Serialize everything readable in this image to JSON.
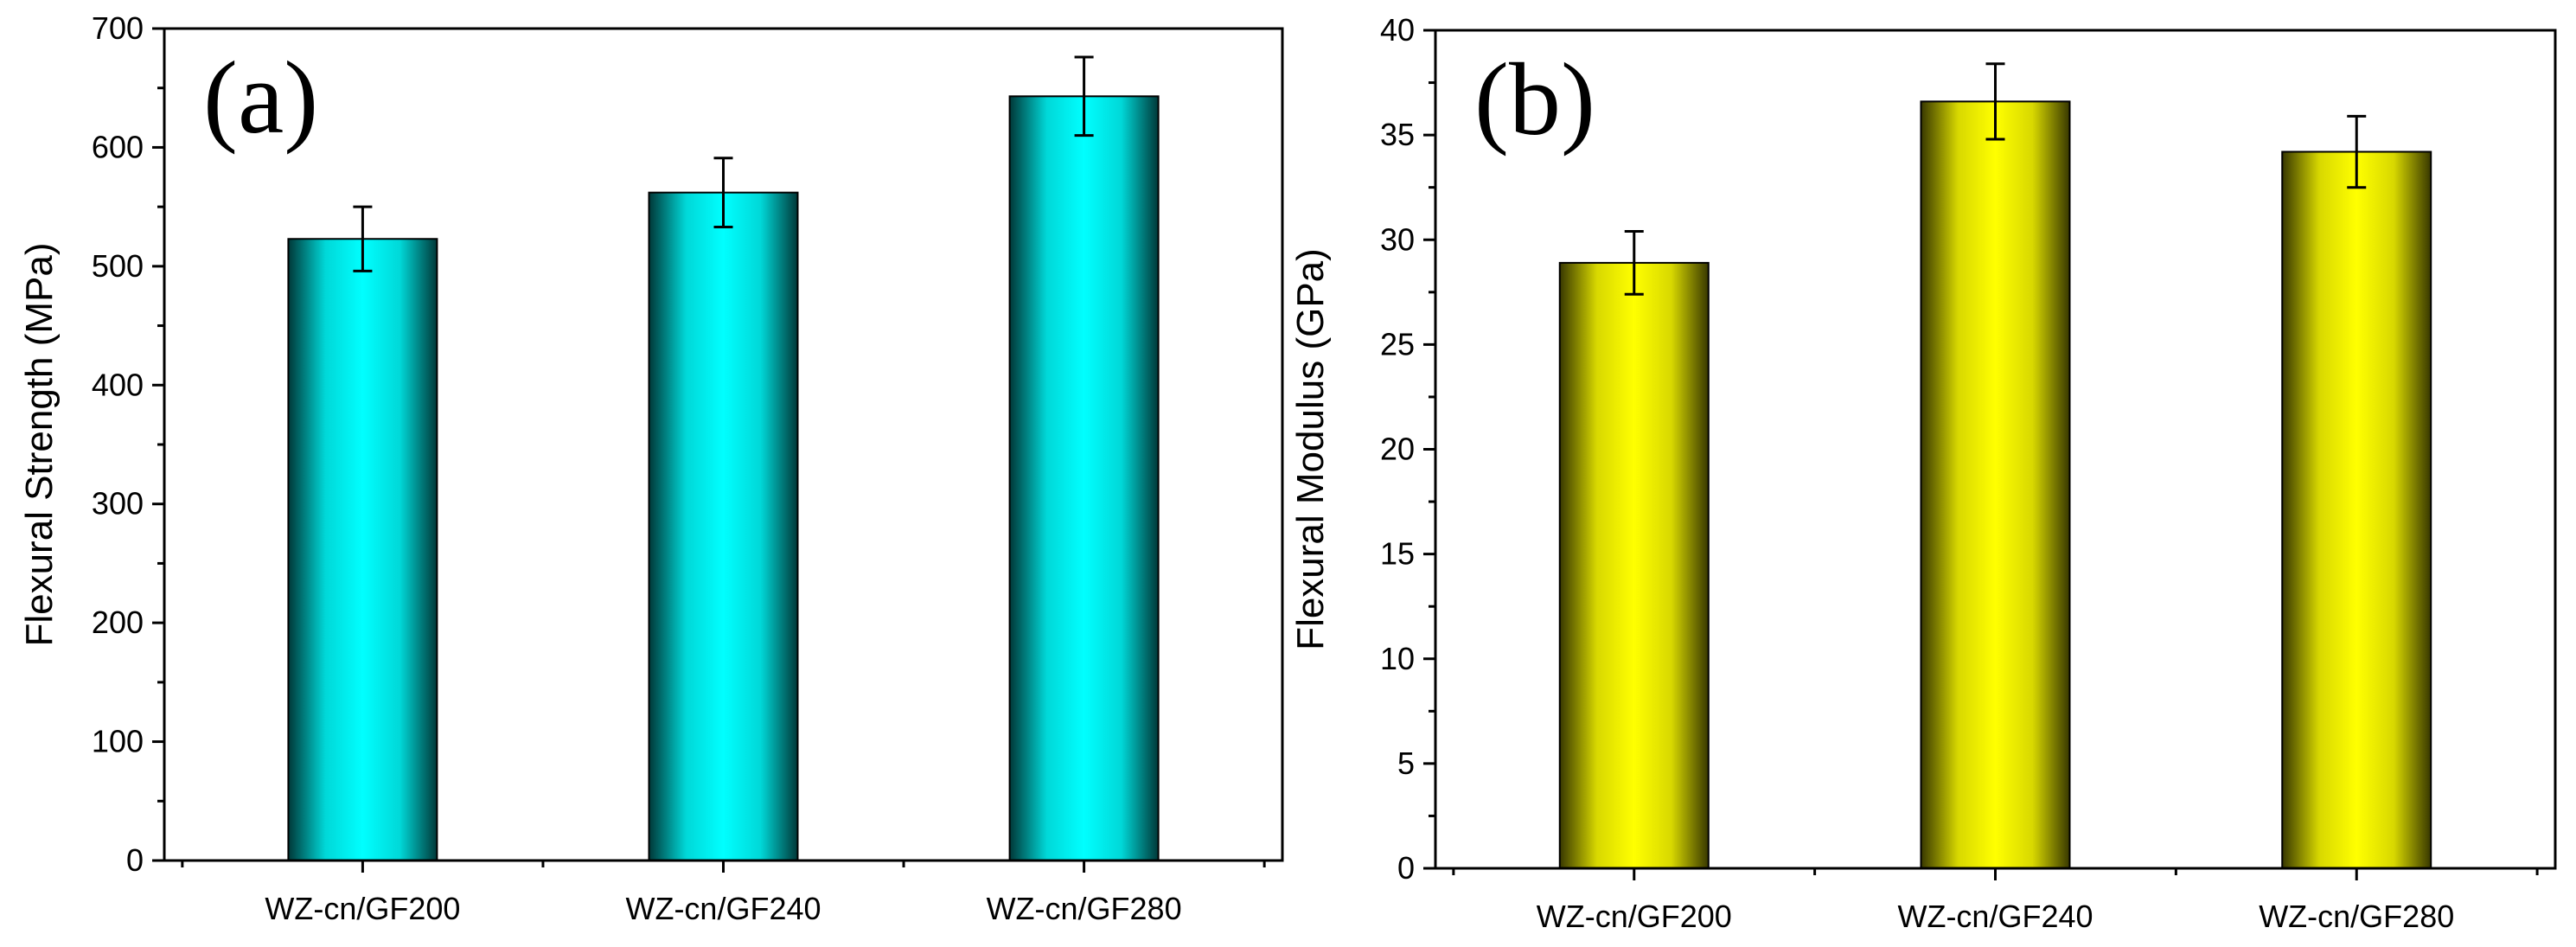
{
  "chart_data": [
    {
      "type": "bar",
      "panel_label": "(a)",
      "title": "",
      "xlabel": "",
      "ylabel": "Flexural Strength (MPa)",
      "categories": [
        "WZ-cn/GF200",
        "WZ-cn/GF240",
        "WZ-cn/GF280"
      ],
      "values": [
        523,
        562,
        643
      ],
      "errors": [
        27,
        29,
        33
      ],
      "ylim": [
        0,
        700
      ],
      "yticks": [
        "0",
        "100",
        "200",
        "300",
        "400",
        "500",
        "600",
        "700"
      ],
      "bar_color": "#00ffff",
      "bar_edge_color": "#003333"
    },
    {
      "type": "bar",
      "panel_label": "(b)",
      "title": "",
      "xlabel": "",
      "ylabel": "Flexural Modulus (GPa)",
      "categories": [
        "WZ-cn/GF200",
        "WZ-cn/GF240",
        "WZ-cn/GF280"
      ],
      "values": [
        28.9,
        36.6,
        34.2
      ],
      "errors": [
        1.5,
        1.8,
        1.7
      ],
      "ylim": [
        0,
        40
      ],
      "yticks": [
        "0",
        "5",
        "10",
        "15",
        "20",
        "25",
        "30",
        "35",
        "40"
      ],
      "bar_color": "#ffff00",
      "bar_edge_color": "#333300"
    }
  ]
}
